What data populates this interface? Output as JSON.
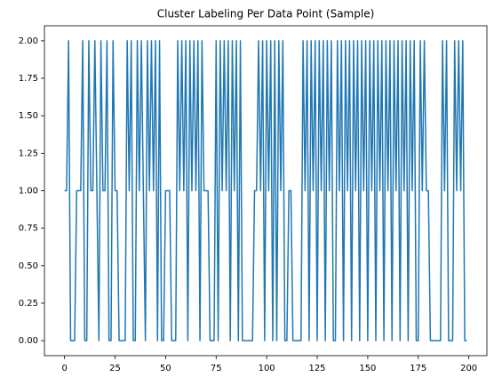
{
  "chart_data": {
    "type": "line",
    "title": "Cluster Labeling Per Data Point (Sample)",
    "x": [
      0,
      1,
      2,
      3,
      4,
      5,
      6,
      7,
      8,
      9,
      10,
      11,
      12,
      13,
      14,
      15,
      16,
      17,
      18,
      19,
      20,
      21,
      22,
      23,
      24,
      25,
      26,
      27,
      28,
      29,
      30,
      31,
      32,
      33,
      34,
      35,
      36,
      37,
      38,
      39,
      40,
      41,
      42,
      43,
      44,
      45,
      46,
      47,
      48,
      49,
      50,
      51,
      52,
      53,
      54,
      55,
      56,
      57,
      58,
      59,
      60,
      61,
      62,
      63,
      64,
      65,
      66,
      67,
      68,
      69,
      70,
      71,
      72,
      73,
      74,
      75,
      76,
      77,
      78,
      79,
      80,
      81,
      82,
      83,
      84,
      85,
      86,
      87,
      88,
      89,
      90,
      91,
      92,
      93,
      94,
      95,
      96,
      97,
      98,
      99,
      100,
      101,
      102,
      103,
      104,
      105,
      106,
      107,
      108,
      109,
      110,
      111,
      112,
      113,
      114,
      115,
      116,
      117,
      118,
      119,
      120,
      121,
      122,
      123,
      124,
      125,
      126,
      127,
      128,
      129,
      130,
      131,
      132,
      133,
      134,
      135,
      136,
      137,
      138,
      139,
      140,
      141,
      142,
      143,
      144,
      145,
      146,
      147,
      148,
      149,
      150,
      151,
      152,
      153,
      154,
      155,
      156,
      157,
      158,
      159,
      160,
      161,
      162,
      163,
      164,
      165,
      166,
      167,
      168,
      169,
      170,
      171,
      172,
      173,
      174,
      175,
      176,
      177,
      178,
      179,
      180,
      181,
      182,
      183,
      184,
      185,
      186,
      187,
      188,
      189,
      190,
      191,
      192,
      193,
      194,
      195,
      196,
      197,
      198,
      199
    ],
    "values": [
      1,
      1,
      2,
      0,
      0,
      0,
      1,
      1,
      1,
      2,
      0,
      0,
      2,
      1,
      1,
      2,
      1,
      0,
      2,
      1,
      1,
      2,
      0,
      0,
      2,
      1,
      1,
      0,
      0,
      0,
      0,
      2,
      1,
      2,
      0,
      0,
      2,
      1,
      2,
      1,
      0,
      2,
      1,
      2,
      1,
      2,
      0,
      2,
      0,
      0,
      1,
      1,
      1,
      0,
      0,
      0,
      2,
      1,
      2,
      1,
      2,
      0,
      2,
      1,
      2,
      1,
      2,
      0,
      2,
      1,
      1,
      1,
      0,
      0,
      0,
      2,
      0,
      2,
      1,
      2,
      1,
      2,
      0,
      2,
      1,
      2,
      0,
      2,
      0,
      0,
      0,
      0,
      0,
      0,
      1,
      1,
      2,
      1,
      2,
      0,
      2,
      1,
      2,
      0,
      2,
      0,
      2,
      1,
      2,
      0,
      0,
      1,
      1,
      0,
      0,
      0,
      0,
      0,
      2,
      1,
      2,
      0,
      2,
      1,
      2,
      0,
      2,
      1,
      2,
      0,
      2,
      1,
      2,
      0,
      0,
      2,
      1,
      2,
      0,
      2,
      1,
      2,
      0,
      2,
      1,
      2,
      0,
      2,
      1,
      2,
      0,
      2,
      1,
      2,
      0,
      2,
      1,
      2,
      0,
      2,
      1,
      2,
      0,
      2,
      1,
      2,
      0,
      2,
      1,
      2,
      0,
      2,
      1,
      2,
      0,
      0,
      2,
      1,
      2,
      1,
      1,
      0,
      0,
      0,
      0,
      0,
      0,
      2,
      1,
      2,
      0,
      0,
      0,
      2,
      1,
      2,
      1,
      2,
      0,
      0
    ],
    "color": "#1f77b4",
    "xlim": [
      -9.95,
      208.95
    ],
    "xticks": [
      0,
      25,
      50,
      75,
      100,
      125,
      150,
      175,
      200
    ],
    "ylim": [
      -0.1,
      2.1
    ],
    "yticks": [
      {
        "value": 0,
        "label": "0.00"
      },
      {
        "value": 0.25,
        "label": "0.25"
      },
      {
        "value": 0.5,
        "label": "0.50"
      },
      {
        "value": 0.75,
        "label": "0.75"
      },
      {
        "value": 1,
        "label": "1.00"
      },
      {
        "value": 1.25,
        "label": "1.25"
      },
      {
        "value": 1.5,
        "label": "1.50"
      },
      {
        "value": 1.75,
        "label": "1.75"
      },
      {
        "value": 2,
        "label": "2.00"
      }
    ]
  }
}
